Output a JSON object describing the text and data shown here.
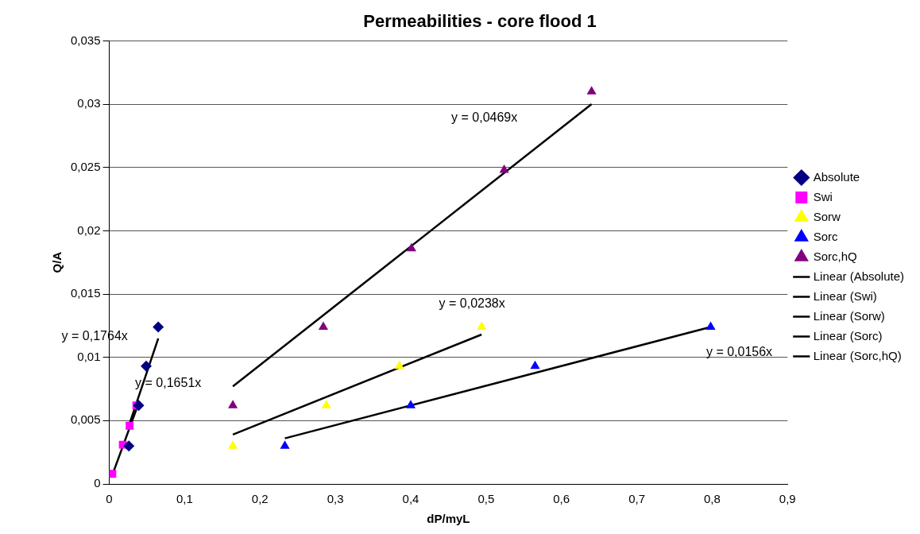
{
  "chart_data": {
    "type": "scatter",
    "title": "Permeabilities - core flood 1",
    "xlabel": "dP/myL",
    "ylabel": "Q/A",
    "xlim": [
      0,
      0.9
    ],
    "ylim": [
      0,
      0.035
    ],
    "xticks": [
      {
        "value": 0,
        "label": "0"
      },
      {
        "value": 0.1,
        "label": "0,1"
      },
      {
        "value": 0.2,
        "label": "0,2"
      },
      {
        "value": 0.3,
        "label": "0,3"
      },
      {
        "value": 0.4,
        "label": "0,4"
      },
      {
        "value": 0.5,
        "label": "0,5"
      },
      {
        "value": 0.6,
        "label": "0,6"
      },
      {
        "value": 0.7,
        "label": "0,7"
      },
      {
        "value": 0.8,
        "label": "0,8"
      },
      {
        "value": 0.9,
        "label": "0,9"
      }
    ],
    "yticks": [
      {
        "value": 0,
        "label": "0"
      },
      {
        "value": 0.005,
        "label": "0,005"
      },
      {
        "value": 0.01,
        "label": "0,01"
      },
      {
        "value": 0.015,
        "label": "0,015"
      },
      {
        "value": 0.02,
        "label": "0,02"
      },
      {
        "value": 0.025,
        "label": "0,025"
      },
      {
        "value": 0.03,
        "label": "0,03"
      },
      {
        "value": 0.035,
        "label": "0,035"
      }
    ],
    "grid": "y",
    "legend": "right",
    "series": [
      {
        "name": "Absolute",
        "type": "scatter",
        "marker": "diamond",
        "color": "#000080",
        "x": [
          0.026,
          0.039,
          0.049,
          0.065
        ],
        "values": [
          0.003,
          0.0062,
          0.0093,
          0.0124
        ]
      },
      {
        "name": "Swi",
        "type": "scatter",
        "marker": "square",
        "color": "#ff00ff",
        "x": [
          0.004,
          0.018,
          0.027,
          0.036
        ],
        "values": [
          0.0008,
          0.0031,
          0.0046,
          0.0062
        ]
      },
      {
        "name": "Sorw",
        "type": "scatter",
        "marker": "triangle",
        "color": "#ffff00",
        "x": [
          0.164,
          0.288,
          0.385,
          0.494
        ],
        "values": [
          0.003,
          0.0062,
          0.0093,
          0.0124
        ]
      },
      {
        "name": "Sorc",
        "type": "scatter",
        "marker": "triangle",
        "color": "#0000ff",
        "x": [
          0.233,
          0.4,
          0.565,
          0.798
        ],
        "values": [
          0.003,
          0.0062,
          0.0093,
          0.0124
        ]
      },
      {
        "name": "Sorc,hQ",
        "type": "scatter",
        "marker": "triangle",
        "color": "#800080",
        "x": [
          0.164,
          0.284,
          0.401,
          0.524,
          0.64
        ],
        "values": [
          0.0062,
          0.0124,
          0.0186,
          0.0248,
          0.031
        ]
      },
      {
        "name": "Linear (Absolute)",
        "type": "line",
        "marker": "none",
        "color": "#000000",
        "x": [
          0.026,
          0.065
        ],
        "values": [
          0.0046,
          0.0115
        ]
      },
      {
        "name": "Linear (Swi)",
        "type": "line",
        "marker": "none",
        "color": "#000000",
        "x": [
          0.004,
          0.036
        ],
        "values": [
          0.0007,
          0.0059
        ]
      },
      {
        "name": "Linear (Sorw)",
        "type": "line",
        "marker": "none",
        "color": "#000000",
        "x": [
          0.164,
          0.494
        ],
        "values": [
          0.0039,
          0.0118
        ]
      },
      {
        "name": "Linear (Sorc)",
        "type": "line",
        "marker": "none",
        "color": "#000000",
        "x": [
          0.233,
          0.798
        ],
        "values": [
          0.0036,
          0.0124
        ]
      },
      {
        "name": "Linear (Sorc,hQ)",
        "type": "line",
        "marker": "none",
        "color": "#000000",
        "x": [
          0.164,
          0.64
        ],
        "values": [
          0.0077,
          0.03
        ]
      }
    ],
    "annotations": [
      "y = 0,1764x",
      "y = 0,1651x",
      "y = 0,0238x",
      "y = 0,0156x",
      "y = 0,0469x"
    ]
  }
}
